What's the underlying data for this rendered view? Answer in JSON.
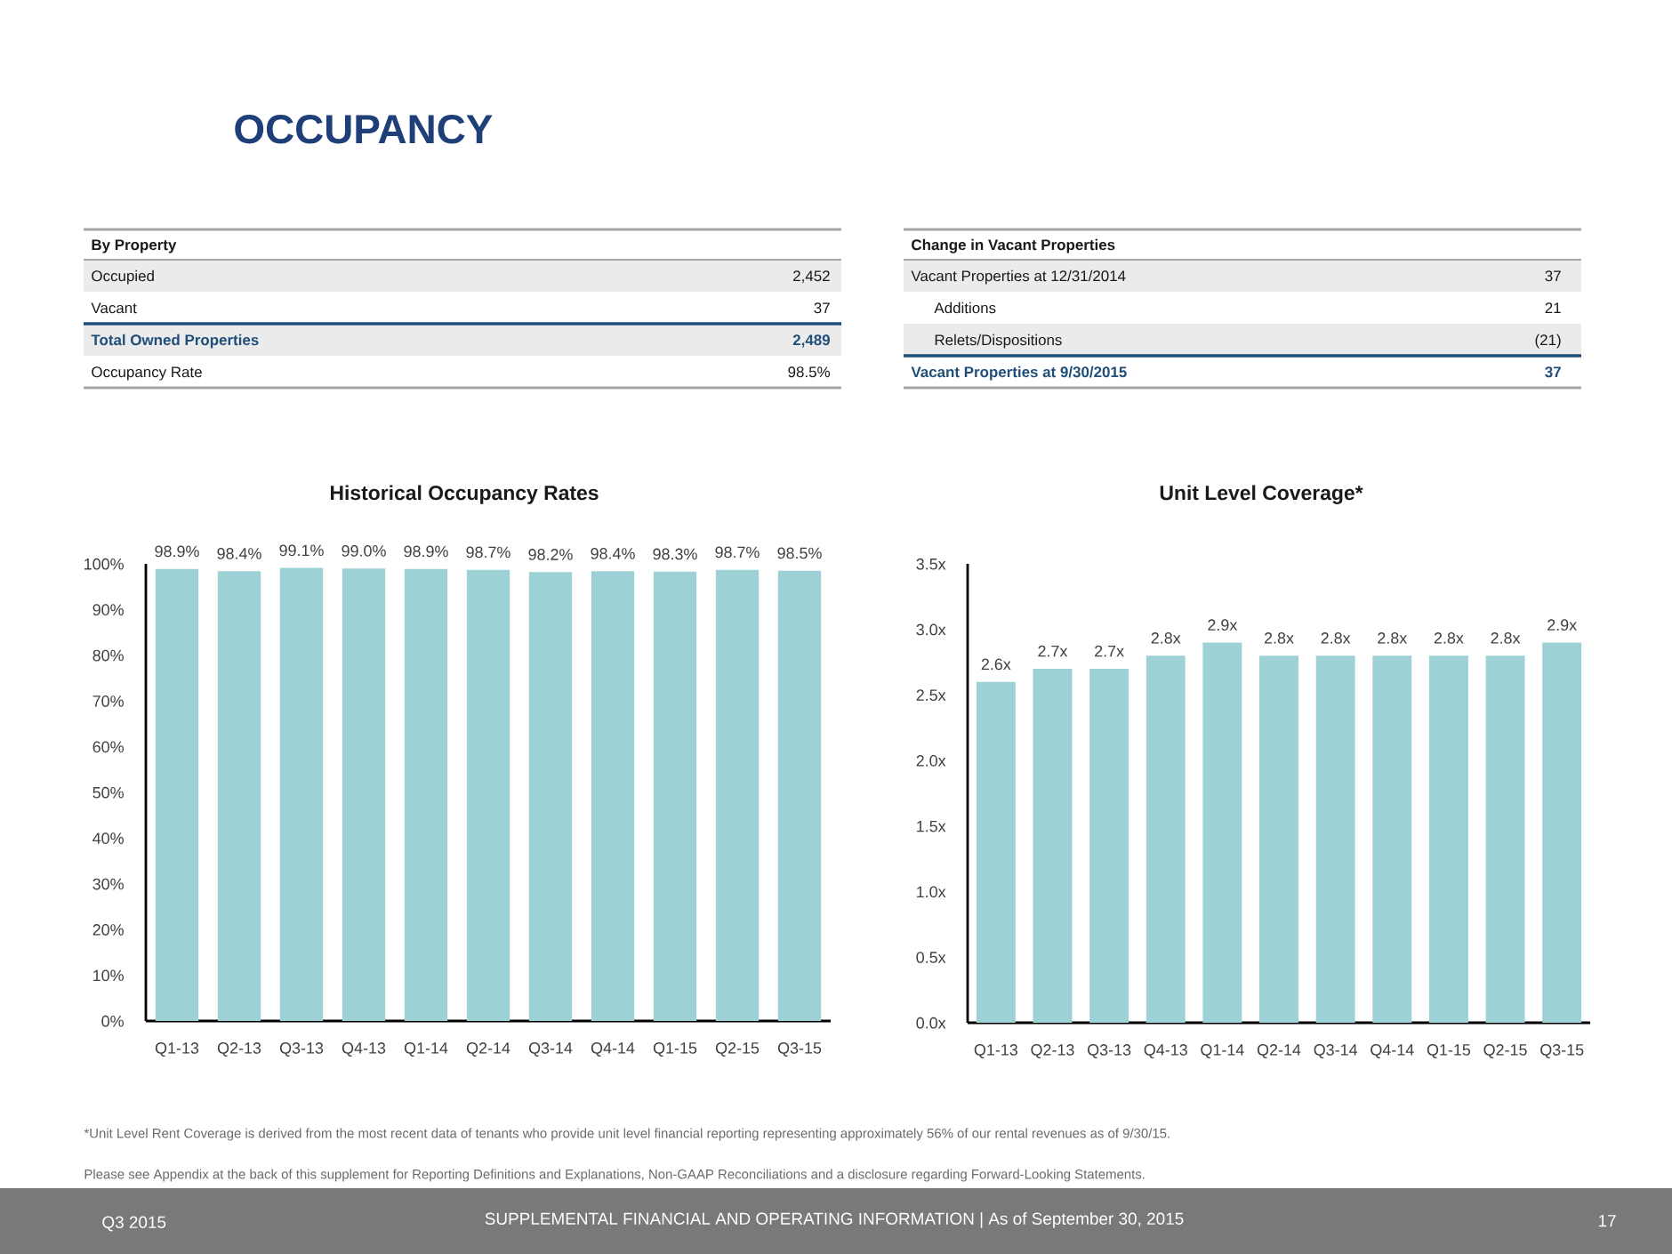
{
  "chart_data": [
    {
      "type": "other",
      "title": "OCCUPANCY",
      "annotations": [
        "Please see Appendix at the back of this supplement for Reporting Definitions and Explanations, Non-GAAP Reconciliations and a disclosure regarding Forward-Looking Statements.",
        "Q3 2015",
        "SUPPLEMENTAL FINANCIAL AND OPERATING INFORMATION | As of September 30, 2015",
        "17"
      ]
    },
    {
      "type": "other",
      "title": "By Property",
      "categories": [
        "Occupied",
        "Vacant",
        "Total Owned Properties",
        "Occupancy Rate"
      ],
      "value_labels": [
        "2,452",
        "37",
        "2,489",
        "98.5%"
      ]
    },
    {
      "type": "other",
      "title": "Change in Vacant Properties",
      "categories": [
        "Vacant Properties at 12/31/2014",
        "Additions",
        "Relets/Dispositions",
        "Vacant Properties at 9/30/2015"
      ],
      "value_labels": [
        "37",
        "21",
        "(21)",
        "37"
      ]
    },
    {
      "type": "bar",
      "title": "Historical Occupancy Rates",
      "categories": [
        "Q1-13",
        "Q2-13",
        "Q3-13",
        "Q4-13",
        "Q1-14",
        "Q2-14",
        "Q3-14",
        "Q4-14",
        "Q1-15",
        "Q2-15",
        "Q3-15"
      ],
      "values": [
        98.9,
        98.4,
        99.1,
        99.0,
        98.9,
        98.7,
        98.2,
        98.4,
        98.3,
        98.7,
        98.5
      ],
      "value_labels": [
        "98.9%",
        "98.4%",
        "99.1%",
        "99.0%",
        "98.9%",
        "98.7%",
        "98.2%",
        "98.4%",
        "98.3%",
        "98.7%",
        "98.5%"
      ],
      "color": "#9dd1d6",
      "ylim": [
        0,
        100
      ],
      "yticks": [
        {
          "value": 0,
          "label": "0%"
        },
        {
          "value": 10,
          "label": "10%"
        },
        {
          "value": 20,
          "label": "20%"
        },
        {
          "value": 30,
          "label": "30%"
        },
        {
          "value": 40,
          "label": "40%"
        },
        {
          "value": 50,
          "label": "50%"
        },
        {
          "value": 60,
          "label": "60%"
        },
        {
          "value": 70,
          "label": "70%"
        },
        {
          "value": 80,
          "label": "80%"
        },
        {
          "value": 90,
          "label": "90%"
        },
        {
          "value": 100,
          "label": "100%"
        }
      ]
    },
    {
      "type": "bar",
      "title": "Unit Level Coverage*",
      "categories": [
        "Q1-13",
        "Q2-13",
        "Q3-13",
        "Q4-13",
        "Q1-14",
        "Q2-14",
        "Q3-14",
        "Q4-14",
        "Q1-15",
        "Q2-15",
        "Q3-15"
      ],
      "values": [
        2.6,
        2.7,
        2.7,
        2.8,
        2.9,
        2.8,
        2.8,
        2.8,
        2.8,
        2.8,
        2.9
      ],
      "value_labels": [
        "2.6x",
        "2.7x",
        "2.7x",
        "2.8x",
        "2.9x",
        "2.8x",
        "2.8x",
        "2.8x",
        "2.8x",
        "2.8x",
        "2.9x"
      ],
      "color": "#9dd1d6",
      "ylim": [
        0,
        3.5
      ],
      "yticks": [
        {
          "value": 0,
          "label": "0.0x"
        },
        {
          "value": 0.5,
          "label": "0.5x"
        },
        {
          "value": 1,
          "label": "1.0x"
        },
        {
          "value": 1.5,
          "label": "1.5x"
        },
        {
          "value": 2,
          "label": "2.0x"
        },
        {
          "value": 2.5,
          "label": "2.5x"
        },
        {
          "value": 3,
          "label": "3.0x"
        },
        {
          "value": 3.5,
          "label": "3.5x"
        }
      ],
      "annotations": [
        "*Unit Level Rent Coverage is derived from the most recent data of tenants who provide unit level financial reporting representing approximately 56% of our rental revenues as of 9/30/15."
      ]
    }
  ]
}
